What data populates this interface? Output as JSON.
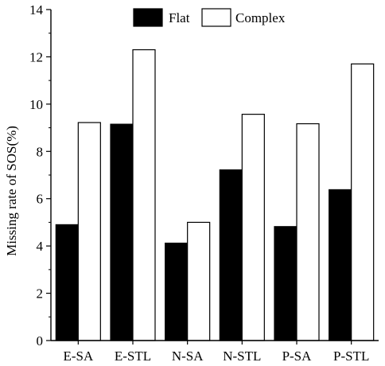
{
  "chart_data": {
    "type": "bar",
    "categories": [
      "E-SA",
      "E-STL",
      "N-SA",
      "N-STL",
      "P-SA",
      "P-STL"
    ],
    "series": [
      {
        "name": "Flat",
        "values": [
          4.9,
          9.15,
          4.12,
          7.22,
          4.82,
          6.38
        ],
        "color": "#000000"
      },
      {
        "name": "Complex",
        "values": [
          9.22,
          12.3,
          5.0,
          9.57,
          9.17,
          11.7
        ],
        "color": "#ffffff"
      }
    ],
    "xlabel": "",
    "ylabel": "Missing rate of SOS(%)",
    "ylim": [
      0,
      14
    ],
    "yticks": [
      "0",
      "2",
      "4",
      "6",
      "8",
      "10",
      "12",
      "14"
    ],
    "legend_position": "top-center",
    "grid": false
  }
}
